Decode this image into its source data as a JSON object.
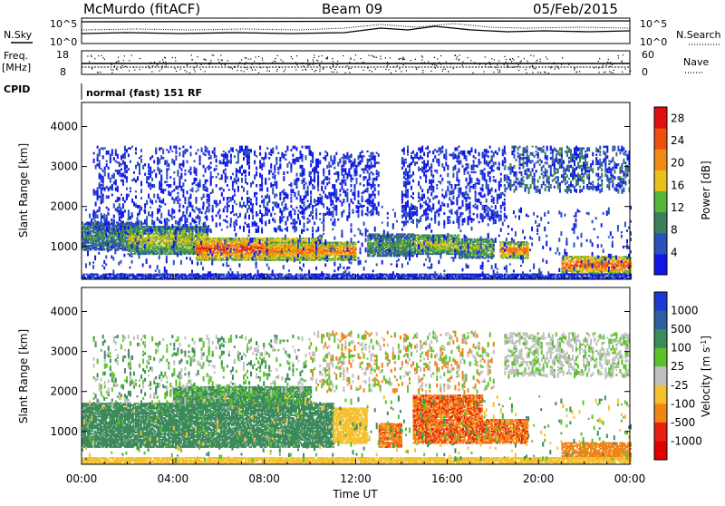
{
  "header": {
    "station": "McMurdo (fitACF)",
    "beam": "Beam 09",
    "date": "05/Feb/2015"
  },
  "noise_panel": {
    "left_label": "N.Sky",
    "right_label": "N.Search",
    "left_ticks": [
      "10^5",
      "10^0"
    ],
    "right_ticks": [
      "10^5",
      "10^0"
    ]
  },
  "freq_panel": {
    "left_label_line1": "Freq.",
    "left_label_line2": "[MHz]",
    "right_label": "Nave",
    "left_ticks": [
      "18",
      "8"
    ],
    "right_ticks": [
      "60",
      "0"
    ]
  },
  "cpid": {
    "label": "CPID",
    "text": "normal (fast) 151 RF"
  },
  "chart_data": [
    {
      "type": "heatmap",
      "title": "",
      "xlabel": "Time UT",
      "ylabel": "Slant Range [km]",
      "xlim": [
        "00:00",
        "24:00"
      ],
      "ylim": [
        180,
        4600
      ],
      "x_tick_labels": [
        "00:00",
        "04:00",
        "08:00",
        "12:00",
        "16:00",
        "20:00",
        "00:00"
      ],
      "y_ticks": [
        1000,
        2000,
        3000,
        4000
      ],
      "y_tick_labels": [
        "1000",
        "2000",
        "3000",
        "4000"
      ],
      "colorbar": {
        "label": "Power [dB]",
        "range": [
          0,
          30
        ],
        "tick_values": [
          4,
          8,
          12,
          16,
          20,
          24,
          28
        ],
        "tick_labels": [
          "4",
          "8",
          "12",
          "16",
          "20",
          "24",
          "28"
        ],
        "colors": [
          "#1018e8",
          "#2a52b8",
          "#3d7e5c",
          "#55b43a",
          "#e8c21c",
          "#f08a14",
          "#ee5010",
          "#e01010"
        ]
      },
      "bands": [
        {
          "t0": 0.0,
          "t1": 2.5,
          "r0": 900,
          "r1": 1600,
          "level": 0.35
        },
        {
          "t0": 2.0,
          "t1": 5.5,
          "r0": 800,
          "r1": 1500,
          "level": 0.55
        },
        {
          "t0": 5.0,
          "t1": 10.5,
          "r0": 650,
          "r1": 1200,
          "level": 0.85
        },
        {
          "t0": 8.0,
          "t1": 12.0,
          "r0": 650,
          "r1": 1100,
          "level": 0.75
        },
        {
          "t0": 12.5,
          "t1": 14.5,
          "r0": 750,
          "r1": 1300,
          "level": 0.4
        },
        {
          "t0": 14.5,
          "t1": 16.5,
          "r0": 800,
          "r1": 1300,
          "level": 0.55
        },
        {
          "t0": 16.5,
          "t1": 18.0,
          "r0": 700,
          "r1": 1200,
          "level": 0.5
        },
        {
          "t0": 18.3,
          "t1": 19.5,
          "r0": 700,
          "r1": 1100,
          "level": 0.75
        },
        {
          "t0": 21.0,
          "t1": 24.0,
          "r0": 300,
          "r1": 750,
          "level": 0.8
        },
        {
          "t0": 0.0,
          "t1": 24.0,
          "r0": 180,
          "r1": 320,
          "level": 0.12
        }
      ],
      "scatter_regions": [
        {
          "t0": 0.5,
          "t1": 10.0,
          "r0": 1400,
          "r1": 3500,
          "density": 0.16,
          "levels": [
            0.05,
            0.12,
            0.2
          ]
        },
        {
          "t0": 10.0,
          "t1": 13.0,
          "r0": 1800,
          "r1": 3400,
          "density": 0.22,
          "levels": [
            0.05,
            0.1,
            0.2
          ]
        },
        {
          "t0": 14.0,
          "t1": 18.5,
          "r0": 1600,
          "r1": 3500,
          "density": 0.2,
          "levels": [
            0.06,
            0.12,
            0.22
          ]
        },
        {
          "t0": 18.5,
          "t1": 24.0,
          "r0": 2400,
          "r1": 3500,
          "density": 0.28,
          "levels": [
            0.06,
            0.14,
            0.25
          ]
        },
        {
          "t0": 0.0,
          "t1": 24.0,
          "r0": 300,
          "r1": 2000,
          "density": 0.05,
          "levels": [
            0.05,
            0.2
          ]
        }
      ]
    },
    {
      "type": "heatmap",
      "title": "",
      "xlabel": "Time UT",
      "ylabel": "Slant Range [km]",
      "xlim": [
        "00:00",
        "24:00"
      ],
      "ylim": [
        180,
        4600
      ],
      "x_tick_labels": [
        "00:00",
        "04:00",
        "08:00",
        "12:00",
        "16:00",
        "20:00",
        "00:00"
      ],
      "y_ticks": [
        1000,
        2000,
        3000,
        4000
      ],
      "y_tick_labels": [
        "1000",
        "2000",
        "3000",
        "4000"
      ],
      "colorbar": {
        "label": "Velocity [m s^-1]",
        "tick_labels": [
          "1000",
          "500",
          "100",
          "25",
          "-25",
          "-100",
          "-500",
          "-1000"
        ],
        "colors": [
          "#1d3ad0",
          "#2f5ea0",
          "#3d8a5c",
          "#5cc22c",
          "#c0c0c0",
          "#f4c030",
          "#f08418",
          "#e82010",
          "#e00000"
        ]
      },
      "bands": [
        {
          "t0": 0.0,
          "t1": 11.0,
          "r0": 600,
          "r1": 1700,
          "value": 300
        },
        {
          "t0": 4.0,
          "t1": 10.0,
          "r0": 1700,
          "r1": 2100,
          "value": 120
        },
        {
          "t0": 11.0,
          "t1": 12.5,
          "r0": 700,
          "r1": 1600,
          "value": -60
        },
        {
          "t0": 13.0,
          "t1": 14.0,
          "r0": 600,
          "r1": 1200,
          "value": -400
        },
        {
          "t0": 14.5,
          "t1": 17.5,
          "r0": 700,
          "r1": 1900,
          "value": -450
        },
        {
          "t0": 17.5,
          "t1": 19.5,
          "r0": 700,
          "r1": 1300,
          "value": -420
        },
        {
          "t0": 21.0,
          "t1": 24.0,
          "r0": 300,
          "r1": 700,
          "value": -350
        },
        {
          "t0": 0.0,
          "t1": 24.0,
          "r0": 180,
          "r1": 330,
          "value": -60
        }
      ],
      "scatter_regions": [
        {
          "t0": 0.5,
          "t1": 10.0,
          "r0": 1700,
          "r1": 3400,
          "density": 0.12,
          "values": [
            0,
            60,
            200
          ]
        },
        {
          "t0": 10.0,
          "t1": 18.0,
          "r0": 2000,
          "r1": 3500,
          "density": 0.15,
          "values": [
            0,
            40,
            -300
          ]
        },
        {
          "t0": 18.5,
          "t1": 24.0,
          "r0": 2400,
          "r1": 3450,
          "density": 0.3,
          "values": [
            0,
            0,
            60
          ]
        },
        {
          "t0": 0.0,
          "t1": 24.0,
          "r0": 300,
          "r1": 1900,
          "density": 0.04,
          "values": [
            60,
            -60,
            200
          ]
        }
      ]
    }
  ]
}
